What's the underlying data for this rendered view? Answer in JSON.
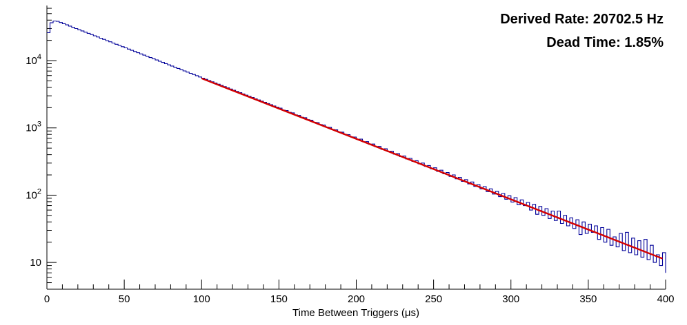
{
  "chart_data": {
    "type": "line",
    "subtype": "step-histogram-log-y",
    "title": "",
    "xlabel": "Time Between Triggers (μs)",
    "ylabel": "",
    "xlim": [
      0,
      400
    ],
    "ylim": [
      4,
      66000
    ],
    "y_scale": "log",
    "grid": false,
    "legend": false,
    "x_ticks": [
      0,
      50,
      100,
      150,
      200,
      250,
      300,
      350,
      400
    ],
    "x_minor_tick_step": 10,
    "y_ticks": [
      {
        "value": 10,
        "base": "10",
        "exp": ""
      },
      {
        "value": 100,
        "base": "10",
        "exp": "2"
      },
      {
        "value": 1000,
        "base": "10",
        "exp": "3"
      },
      {
        "value": 10000,
        "base": "10",
        "exp": "4"
      }
    ],
    "bin_width_us": 2,
    "x": [
      0,
      2,
      4,
      6,
      8,
      10,
      12,
      14,
      16,
      18,
      20,
      22,
      24,
      26,
      28,
      30,
      32,
      34,
      36,
      38,
      40,
      42,
      44,
      46,
      48,
      50,
      52,
      54,
      56,
      58,
      60,
      62,
      64,
      66,
      68,
      70,
      72,
      74,
      76,
      78,
      80,
      82,
      84,
      86,
      88,
      90,
      92,
      94,
      96,
      98,
      100,
      102,
      104,
      106,
      108,
      110,
      112,
      114,
      116,
      118,
      120,
      122,
      124,
      126,
      128,
      130,
      132,
      134,
      136,
      138,
      140,
      142,
      144,
      146,
      148,
      150,
      152,
      154,
      156,
      158,
      160,
      162,
      164,
      166,
      168,
      170,
      172,
      174,
      176,
      178,
      180,
      182,
      184,
      186,
      188,
      190,
      192,
      194,
      196,
      198,
      200,
      202,
      204,
      206,
      208,
      210,
      212,
      214,
      216,
      218,
      220,
      222,
      224,
      226,
      228,
      230,
      232,
      234,
      236,
      238,
      240,
      242,
      244,
      246,
      248,
      250,
      252,
      254,
      256,
      258,
      260,
      262,
      264,
      266,
      268,
      270,
      272,
      274,
      276,
      278,
      280,
      282,
      284,
      286,
      288,
      290,
      292,
      294,
      296,
      298,
      300,
      302,
      304,
      306,
      308,
      310,
      312,
      314,
      316,
      318,
      320,
      322,
      324,
      326,
      328,
      330,
      332,
      334,
      336,
      338,
      340,
      342,
      344,
      346,
      348,
      350,
      352,
      354,
      356,
      358,
      360,
      362,
      364,
      366,
      368,
      370,
      372,
      374,
      376,
      378,
      380,
      382,
      384,
      386,
      388,
      390,
      392,
      394,
      396,
      398,
      400
    ],
    "values": [
      26000,
      36500,
      38800,
      38500,
      36900,
      35400,
      34000,
      32600,
      31300,
      30000,
      28800,
      27650,
      26500,
      25450,
      24400,
      23400,
      22470,
      21550,
      20680,
      19840,
      19040,
      18260,
      17520,
      16810,
      16130,
      15470,
      14850,
      14240,
      13660,
      13110,
      12580,
      12070,
      11580,
      11110,
      10660,
      10220,
      9810,
      9410,
      9030,
      8660,
      8310,
      7970,
      7650,
      7340,
      7040,
      6760,
      6480,
      6220,
      5970,
      5720,
      5490,
      5270,
      5050,
      4850,
      4650,
      4460,
      4280,
      4110,
      3940,
      3780,
      3630,
      3480,
      3340,
      3200,
      3070,
      2950,
      2830,
      2710,
      2600,
      2500,
      2400,
      2300,
      2210,
      2120,
      2030,
      1970,
      1840,
      1810,
      1700,
      1675,
      1560,
      1530,
      1440,
      1420,
      1325,
      1300,
      1215,
      1200,
      1120,
      1105,
      1030,
      1020,
      945,
      935,
      870,
      865,
      800,
      795,
      735,
      730,
      675,
      680,
      620,
      625,
      570,
      575,
      525,
      530,
      480,
      490,
      445,
      450,
      408,
      415,
      375,
      382,
      345,
      352,
      318,
      325,
      292,
      300,
      268,
      276,
      246,
      255,
      225,
      235,
      208,
      217,
      190,
      200,
      175,
      184,
      160,
      170,
      147,
      157,
      135,
      144,
      124,
      134,
      113,
      124,
      104,
      114,
      95,
      106,
      87,
      98,
      79,
      92,
      72,
      85,
      70,
      78,
      60,
      73,
      52,
      68,
      50,
      63,
      45,
      58,
      42,
      58,
      38,
      50,
      35,
      46,
      32,
      43,
      26,
      40,
      27,
      37,
      28,
      35,
      22,
      33,
      20,
      31,
      18,
      24,
      17,
      27,
      15,
      28,
      14,
      23,
      13,
      21,
      12,
      22,
      11,
      18,
      10,
      13,
      9,
      14,
      7
    ],
    "fit": {
      "shape": "exponential",
      "x_start": 100,
      "x_end": 398,
      "y_start": 5450,
      "y_end": 11.4
    },
    "colors": {
      "histogram": "#000099",
      "fit": "#d40000",
      "annotation": "#ff0000",
      "axis": "#000000"
    },
    "annotations": [
      {
        "text": "Derived Rate: 20702.5 Hz"
      },
      {
        "text": "Dead Time: 1.85%"
      }
    ],
    "derived_rate_hz": 20702.5,
    "dead_time_percent": 1.85
  }
}
